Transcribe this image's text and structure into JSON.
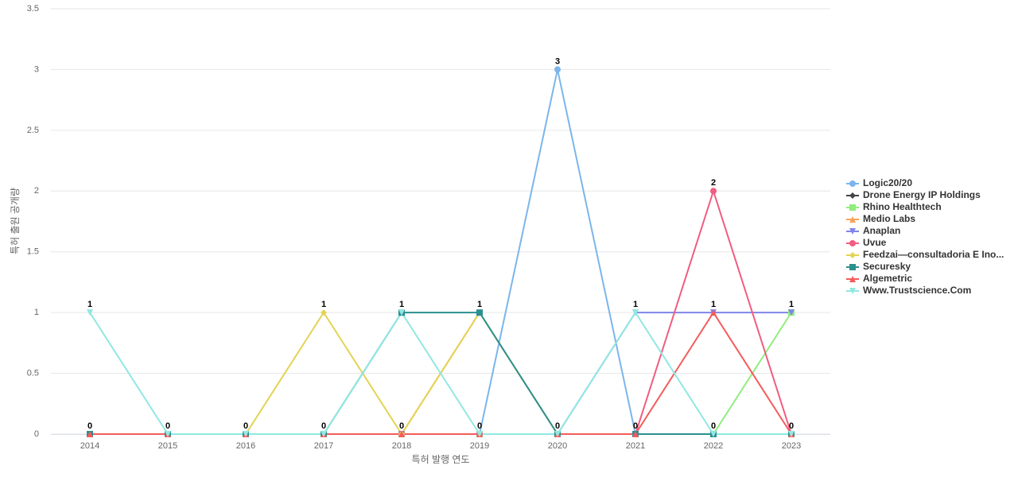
{
  "chart_data": {
    "type": "line",
    "x_label": "특허 발행 연도",
    "y_label": "특허 출원 공개량",
    "categories": [
      "2014",
      "2015",
      "2016",
      "2017",
      "2018",
      "2019",
      "2020",
      "2021",
      "2022",
      "2023"
    ],
    "ylim": [
      0,
      3.5
    ],
    "yticks": [
      0,
      0.5,
      1,
      1.5,
      2,
      2.5,
      3,
      3.5
    ],
    "grid": true,
    "legend": "right",
    "series": [
      {
        "name": "Logic20/20",
        "color": "#7cb5ec",
        "values": [
          0,
          0,
          0,
          0,
          0,
          0,
          3,
          0,
          0,
          0
        ]
      },
      {
        "name": "Drone Energy IP Holdings",
        "color": "#434348",
        "values": [
          0,
          0,
          0,
          0,
          0,
          0,
          0,
          0,
          0,
          0
        ]
      },
      {
        "name": "Rhino Healthtech",
        "color": "#90ed7d",
        "values": [
          0,
          0,
          0,
          0,
          0,
          0,
          0,
          0,
          0,
          1
        ]
      },
      {
        "name": "Medio Labs",
        "color": "#f7a35c",
        "values": [
          0,
          0,
          0,
          0,
          0,
          1,
          0,
          0,
          0,
          0
        ]
      },
      {
        "name": "Anaplan",
        "color": "#8085e9",
        "values": [
          0,
          0,
          0,
          0,
          0,
          0,
          0,
          1,
          1,
          1
        ]
      },
      {
        "name": "Uvue",
        "color": "#f15c80",
        "values": [
          0,
          0,
          0,
          0,
          0,
          0,
          0,
          0,
          2,
          0
        ]
      },
      {
        "name": "Feedzai—consultadoria E Ino...",
        "color": "#e4d354",
        "values": [
          0,
          0,
          0,
          1,
          0,
          1,
          0,
          0,
          0,
          0
        ]
      },
      {
        "name": "Securesky",
        "color": "#2b908f",
        "values": [
          0,
          0,
          0,
          0,
          1,
          1,
          0,
          0,
          0,
          0
        ]
      },
      {
        "name": "Algemetric",
        "color": "#f45b5b",
        "values": [
          0,
          0,
          0,
          0,
          0,
          0,
          0,
          0,
          1,
          0
        ]
      },
      {
        "name": "Www.Trustscience.Com",
        "color": "#91e8e1",
        "values": [
          1,
          0,
          0,
          0,
          1,
          0,
          0,
          1,
          0,
          0
        ]
      }
    ]
  }
}
